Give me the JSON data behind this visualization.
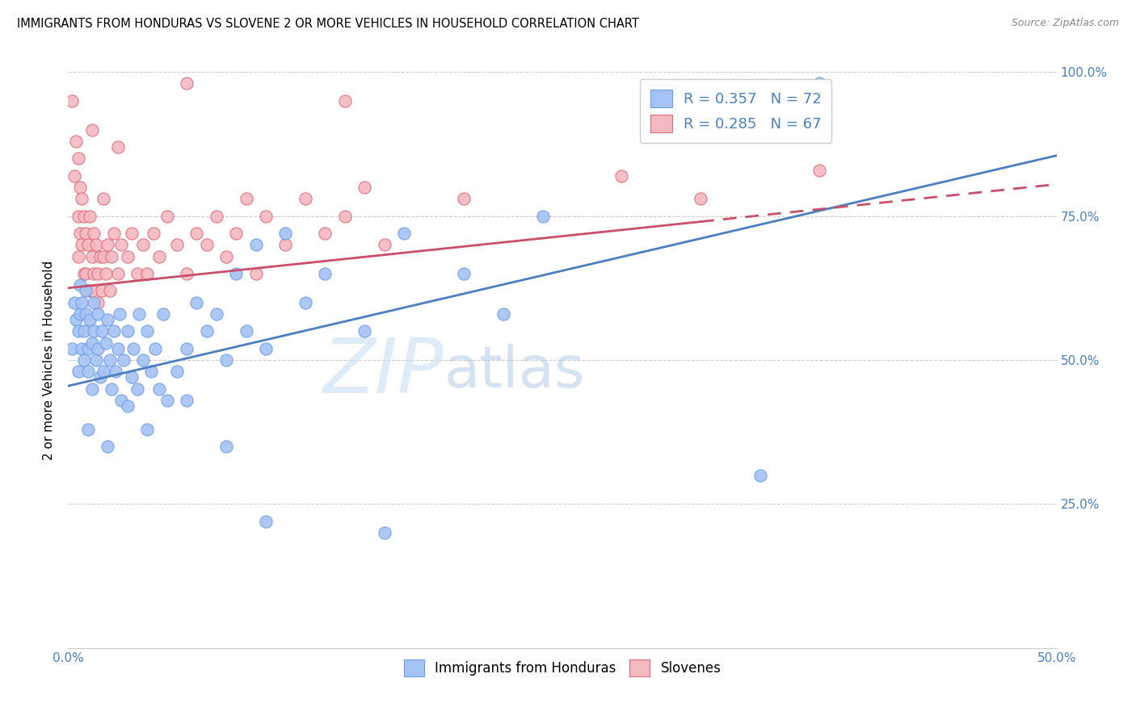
{
  "title": "IMMIGRANTS FROM HONDURAS VS SLOVENE 2 OR MORE VEHICLES IN HOUSEHOLD CORRELATION CHART",
  "source": "Source: ZipAtlas.com",
  "ylabel": "2 or more Vehicles in Household",
  "xlim": [
    0,
    0.5
  ],
  "ylim": [
    0,
    1.0
  ],
  "watermark": "ZIPatlas",
  "color_blue": "#a4c2f4",
  "color_pink": "#f4b8c1",
  "edge_blue": "#6d9eeb",
  "edge_pink": "#e06c7a",
  "line_blue": "#4a7fc1",
  "line_pink": "#c94f6a",
  "trendline_blue_x0": 0.0,
  "trendline_blue_y0": 0.455,
  "trendline_blue_x1": 0.5,
  "trendline_blue_y1": 0.855,
  "trendline_pink_x0": 0.0,
  "trendline_pink_y0": 0.625,
  "trendline_pink_x1": 0.5,
  "trendline_pink_y1": 0.805,
  "trendline_pink_solid_end": 0.32,
  "scatter_blue": [
    [
      0.002,
      0.52
    ],
    [
      0.003,
      0.6
    ],
    [
      0.004,
      0.57
    ],
    [
      0.005,
      0.55
    ],
    [
      0.005,
      0.48
    ],
    [
      0.006,
      0.63
    ],
    [
      0.006,
      0.58
    ],
    [
      0.007,
      0.52
    ],
    [
      0.007,
      0.6
    ],
    [
      0.008,
      0.55
    ],
    [
      0.008,
      0.5
    ],
    [
      0.009,
      0.58
    ],
    [
      0.009,
      0.62
    ],
    [
      0.01,
      0.52
    ],
    [
      0.01,
      0.48
    ],
    [
      0.011,
      0.57
    ],
    [
      0.012,
      0.53
    ],
    [
      0.012,
      0.45
    ],
    [
      0.013,
      0.6
    ],
    [
      0.013,
      0.55
    ],
    [
      0.014,
      0.5
    ],
    [
      0.015,
      0.58
    ],
    [
      0.015,
      0.52
    ],
    [
      0.016,
      0.47
    ],
    [
      0.017,
      0.55
    ],
    [
      0.018,
      0.48
    ],
    [
      0.019,
      0.53
    ],
    [
      0.02,
      0.57
    ],
    [
      0.021,
      0.5
    ],
    [
      0.022,
      0.45
    ],
    [
      0.023,
      0.55
    ],
    [
      0.024,
      0.48
    ],
    [
      0.025,
      0.52
    ],
    [
      0.026,
      0.58
    ],
    [
      0.027,
      0.43
    ],
    [
      0.028,
      0.5
    ],
    [
      0.03,
      0.55
    ],
    [
      0.032,
      0.47
    ],
    [
      0.033,
      0.52
    ],
    [
      0.035,
      0.45
    ],
    [
      0.036,
      0.58
    ],
    [
      0.038,
      0.5
    ],
    [
      0.04,
      0.55
    ],
    [
      0.042,
      0.48
    ],
    [
      0.044,
      0.52
    ],
    [
      0.046,
      0.45
    ],
    [
      0.048,
      0.58
    ],
    [
      0.05,
      0.43
    ],
    [
      0.055,
      0.48
    ],
    [
      0.06,
      0.52
    ],
    [
      0.065,
      0.6
    ],
    [
      0.07,
      0.55
    ],
    [
      0.075,
      0.58
    ],
    [
      0.08,
      0.5
    ],
    [
      0.085,
      0.65
    ],
    [
      0.09,
      0.55
    ],
    [
      0.095,
      0.7
    ],
    [
      0.1,
      0.52
    ],
    [
      0.11,
      0.72
    ],
    [
      0.12,
      0.6
    ],
    [
      0.13,
      0.65
    ],
    [
      0.15,
      0.55
    ],
    [
      0.17,
      0.72
    ],
    [
      0.2,
      0.65
    ],
    [
      0.22,
      0.58
    ],
    [
      0.24,
      0.75
    ],
    [
      0.01,
      0.38
    ],
    [
      0.02,
      0.35
    ],
    [
      0.03,
      0.42
    ],
    [
      0.04,
      0.38
    ],
    [
      0.06,
      0.43
    ],
    [
      0.08,
      0.35
    ],
    [
      0.16,
      0.2
    ],
    [
      0.35,
      0.3
    ],
    [
      0.38,
      0.98
    ],
    [
      0.1,
      0.22
    ]
  ],
  "scatter_pink": [
    [
      0.002,
      0.95
    ],
    [
      0.003,
      0.82
    ],
    [
      0.004,
      0.88
    ],
    [
      0.005,
      0.75
    ],
    [
      0.005,
      0.68
    ],
    [
      0.006,
      0.8
    ],
    [
      0.006,
      0.72
    ],
    [
      0.007,
      0.78
    ],
    [
      0.007,
      0.7
    ],
    [
      0.008,
      0.75
    ],
    [
      0.008,
      0.65
    ],
    [
      0.009,
      0.72
    ],
    [
      0.009,
      0.65
    ],
    [
      0.01,
      0.7
    ],
    [
      0.01,
      0.62
    ],
    [
      0.011,
      0.75
    ],
    [
      0.012,
      0.68
    ],
    [
      0.012,
      0.62
    ],
    [
      0.013,
      0.72
    ],
    [
      0.013,
      0.65
    ],
    [
      0.014,
      0.7
    ],
    [
      0.015,
      0.65
    ],
    [
      0.015,
      0.6
    ],
    [
      0.016,
      0.68
    ],
    [
      0.017,
      0.62
    ],
    [
      0.018,
      0.68
    ],
    [
      0.019,
      0.65
    ],
    [
      0.02,
      0.7
    ],
    [
      0.021,
      0.62
    ],
    [
      0.022,
      0.68
    ],
    [
      0.023,
      0.72
    ],
    [
      0.025,
      0.65
    ],
    [
      0.027,
      0.7
    ],
    [
      0.03,
      0.68
    ],
    [
      0.032,
      0.72
    ],
    [
      0.035,
      0.65
    ],
    [
      0.038,
      0.7
    ],
    [
      0.04,
      0.65
    ],
    [
      0.043,
      0.72
    ],
    [
      0.046,
      0.68
    ],
    [
      0.05,
      0.75
    ],
    [
      0.055,
      0.7
    ],
    [
      0.06,
      0.65
    ],
    [
      0.065,
      0.72
    ],
    [
      0.07,
      0.7
    ],
    [
      0.075,
      0.75
    ],
    [
      0.08,
      0.68
    ],
    [
      0.085,
      0.72
    ],
    [
      0.09,
      0.78
    ],
    [
      0.095,
      0.65
    ],
    [
      0.1,
      0.75
    ],
    [
      0.11,
      0.7
    ],
    [
      0.12,
      0.78
    ],
    [
      0.13,
      0.72
    ],
    [
      0.14,
      0.75
    ],
    [
      0.15,
      0.8
    ],
    [
      0.16,
      0.7
    ],
    [
      0.005,
      0.85
    ],
    [
      0.14,
      0.95
    ],
    [
      0.06,
      0.98
    ],
    [
      0.025,
      0.87
    ],
    [
      0.018,
      0.78
    ],
    [
      0.012,
      0.9
    ],
    [
      0.2,
      0.78
    ],
    [
      0.28,
      0.82
    ],
    [
      0.32,
      0.78
    ],
    [
      0.38,
      0.83
    ]
  ]
}
